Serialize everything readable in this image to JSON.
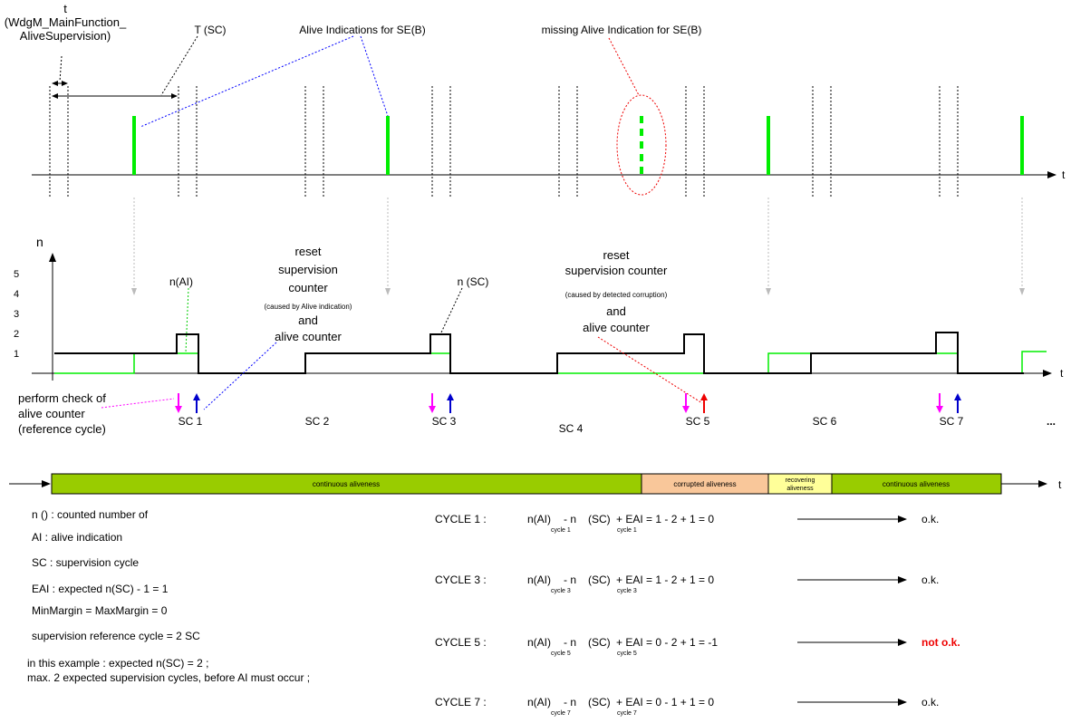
{
  "top": {
    "t_label": [
      "t",
      "(WdgM_MainFunction_",
      "AliveSupervision)"
    ],
    "period_label": "T (SC)",
    "alive_label": "Alive Indications for SE(B)",
    "missing_label": "missing Alive Indication for SE(B)",
    "axis_label": "t"
  },
  "counter": {
    "axis_label": "n",
    "x_axis_label": "t",
    "y_labels": [
      "1",
      "2",
      "3",
      "4",
      "5"
    ],
    "n_ai_label": "n(AI)",
    "n_sc_label": "n (SC)",
    "reset1": [
      "reset",
      "supervision",
      "counter",
      "(caused by Alive indication)",
      "and",
      "alive counter"
    ],
    "reset2": [
      "reset",
      "supervision counter",
      "(caused by detected corruption)",
      "and",
      "alive counter"
    ],
    "check": [
      "perform check of",
      "alive counter",
      "(reference cycle)"
    ],
    "cycles": [
      "SC 1",
      "SC 2",
      "SC 3",
      "SC 4",
      "SC 5",
      "SC 6",
      "SC 7",
      "..."
    ]
  },
  "status_bar": {
    "segments": [
      "continuous  aliveness",
      "corrupted aliveness",
      "recovering aliveness",
      "continuous aliveness"
    ],
    "axis_label": "t"
  },
  "legend": [
    "n () : counted number of",
    "AI : alive indication",
    "SC : supervision cycle",
    "EAI :   expected n(SC)  - 1 = 1",
    "MinMargin = MaxMargin = 0",
    "supervision reference cycle = 2 SC",
    "in this example : expected n(SC) = 2 ;",
    "max. 2 expected supervision cycles, before AI must occur ;"
  ],
  "checks": [
    {
      "label": "CYCLE 1 :",
      "n_ai": "n(AI)",
      "sub1": "cycle 1",
      "minus_n": "- n",
      "sc": "(SC)",
      "sub2": "cycle 1",
      "rest": "+ EAI  = 1 - 2 + 1 = 0",
      "result": "o.k."
    },
    {
      "label": "CYCLE 3 :",
      "n_ai": "n(AI)",
      "sub1": "cycle 3",
      "minus_n": "- n",
      "sc": "(SC)",
      "sub2": "cycle 3",
      "rest": "+ EAI  = 1 - 2 + 1 = 0",
      "result": "o.k."
    },
    {
      "label": "CYCLE 5 :",
      "n_ai": "n(AI)",
      "sub1": "cycle 5",
      "minus_n": "- n",
      "sc": "(SC)",
      "sub2": "cycle 5",
      "rest": "+ EAI  = 0 - 2 + 1 = -1",
      "result": "not o.k."
    },
    {
      "label": "CYCLE 7 :",
      "n_ai": "n(AI)",
      "sub1": "cycle 7",
      "minus_n": "- n",
      "sc": "(SC)",
      "sub2": "cycle 7",
      "rest": "+ EAI  =  0 - 1 + 1 = 0",
      "result": "o.k."
    }
  ]
}
